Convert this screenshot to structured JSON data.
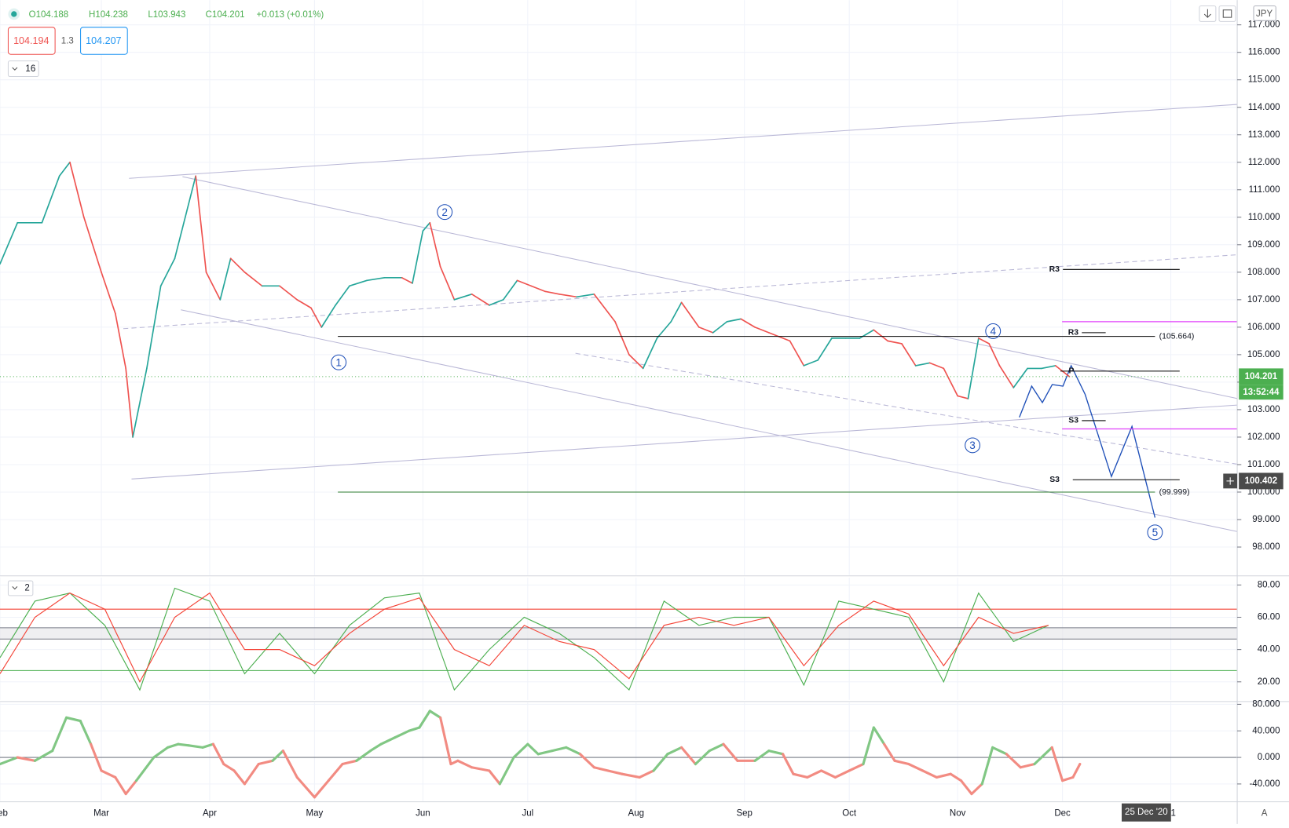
{
  "toolbar": {
    "ohlc": [
      "O104.188",
      "H104.238",
      "L103.943",
      "C104.201",
      "+0.013 (+0.01%)"
    ],
    "bid": "104.194",
    "spread": "1.3",
    "ask": "104.207",
    "indicator_length": "16",
    "oscillator_length": "2",
    "currency": "JPY",
    "auto_scale": "A"
  },
  "chart_data": [
    {
      "type": "line",
      "color_by": "direction",
      "up_color": "#26a69a",
      "down_color": "#ef5350",
      "x": [
        0,
        5,
        12,
        17,
        20,
        24,
        29,
        33,
        36,
        38,
        42,
        46,
        50,
        55,
        56,
        59,
        63,
        66,
        70,
        75,
        80,
        85,
        89,
        92,
        96,
        100,
        105,
        110,
        115,
        118,
        121,
        123,
        126,
        130,
        135,
        140,
        144,
        148,
        152,
        156,
        160,
        165,
        170,
        176,
        180,
        184,
        188,
        192,
        195,
        200,
        204,
        208,
        212,
        216,
        220,
        226,
        230,
        234,
        238,
        242,
        246,
        250,
        254,
        258,
        262,
        266,
        270,
        274,
        277,
        280,
        283,
        286,
        290,
        294,
        298,
        302,
        306
      ],
      "values": [
        108.3,
        109.8,
        109.8,
        111.5,
        112.0,
        110.0,
        108.0,
        106.5,
        104.5,
        102.0,
        104.5,
        107.5,
        108.5,
        111.0,
        111.5,
        108.0,
        107.0,
        108.5,
        108.0,
        107.5,
        107.5,
        107.0,
        106.7,
        106.0,
        106.8,
        107.5,
        107.7,
        107.8,
        107.8,
        107.6,
        109.5,
        109.8,
        108.2,
        107.0,
        107.2,
        106.8,
        107.0,
        107.7,
        107.5,
        107.3,
        107.2,
        107.1,
        107.2,
        106.2,
        105.0,
        104.5,
        105.6,
        106.2,
        106.9,
        106.0,
        105.8,
        106.2,
        106.3,
        106.0,
        105.8,
        105.5,
        104.6,
        104.8,
        105.6,
        105.6,
        105.6,
        105.9,
        105.5,
        105.4,
        104.6,
        104.7,
        104.5,
        103.5,
        103.4,
        105.6,
        105.4,
        104.6,
        103.8,
        104.5,
        104.5,
        104.6,
        104.2
      ],
      "xlim": [
        0,
        354
      ],
      "xticks": [
        {
          "value": 0,
          "label": "Feb"
        },
        {
          "value": 29,
          "label": "Mar"
        },
        {
          "value": 60,
          "label": "Apr"
        },
        {
          "value": 90,
          "label": "May"
        },
        {
          "value": 121,
          "label": "Jun"
        },
        {
          "value": 151,
          "label": "Jul"
        },
        {
          "value": 182,
          "label": "Aug"
        },
        {
          "value": 213,
          "label": "Sep"
        },
        {
          "value": 243,
          "label": "Oct"
        },
        {
          "value": 274,
          "label": "Nov"
        },
        {
          "value": 304,
          "label": "Dec"
        },
        {
          "value": 335,
          "label": "21"
        }
      ],
      "ylim": [
        96.98,
        117.9
      ],
      "yticks": [
        {
          "value": 98,
          "label": "98.000"
        },
        {
          "value": 99,
          "label": "99.000"
        },
        {
          "value": 100,
          "label": "100.000"
        },
        {
          "value": 101,
          "label": "101.000"
        },
        {
          "value": 102,
          "label": "102.000"
        },
        {
          "value": 103,
          "label": "103.000"
        },
        {
          "value": 104,
          "label": "104.000"
        },
        {
          "value": 105,
          "label": "105.000"
        },
        {
          "value": 106,
          "label": "106.000"
        },
        {
          "value": 107,
          "label": "107.000"
        },
        {
          "value": 108,
          "label": "108.000"
        },
        {
          "value": 109,
          "label": "109.000"
        },
        {
          "value": 110,
          "label": "110.000"
        },
        {
          "value": 111,
          "label": "111.000"
        },
        {
          "value": 112,
          "label": "112.000"
        },
        {
          "value": 113,
          "label": "113.000"
        },
        {
          "value": 114,
          "label": "114.000"
        },
        {
          "value": 115,
          "label": "115.000"
        },
        {
          "value": 116,
          "label": "116.000"
        },
        {
          "value": 117,
          "label": "117.000"
        }
      ],
      "grid": true,
      "levels": [
        {
          "name": "R3",
          "value": 108.1,
          "color": "#000000"
        },
        {
          "name": "R3",
          "value": 105.8,
          "color": "#000000"
        },
        {
          "label": "(105.664)",
          "value": 105.664,
          "color": "#000000"
        },
        {
          "name": "P",
          "value": 104.4,
          "color": "#000000"
        },
        {
          "name": "S3",
          "value": 102.6,
          "color": "#000000"
        },
        {
          "name": "S3",
          "value": 100.45,
          "color": "#000000"
        },
        {
          "label": "(99.999)",
          "value": 99.999,
          "color": "#2e7d32"
        }
      ],
      "lines": [
        {
          "value": 106.2,
          "color": "#e040fb"
        },
        {
          "value": 102.3,
          "color": "#e040fb"
        }
      ],
      "wave_labels": [
        "1",
        "2",
        "3",
        "4",
        "5"
      ],
      "last_price": 104.201,
      "last_price_color": "#4caf50",
      "countdown": "13:52:44",
      "cursor_price": 100.402,
      "crosshair_date": {
        "value": 328,
        "label": "25 Dec '20"
      }
    },
    {
      "type": "line",
      "x": [
        0,
        10,
        20,
        30,
        40,
        50,
        60,
        70,
        80,
        90,
        100,
        110,
        120,
        130,
        140,
        150,
        160,
        170,
        180,
        190,
        200,
        210,
        220,
        230,
        240,
        250,
        260,
        270,
        280,
        290,
        300
      ],
      "series": [
        {
          "color": "#4caf50",
          "values": [
            35,
            70,
            75,
            55,
            15,
            78,
            70,
            25,
            50,
            25,
            55,
            72,
            75,
            15,
            40,
            60,
            50,
            35,
            15,
            70,
            55,
            60,
            60,
            18,
            70,
            65,
            60,
            20,
            75,
            45,
            55
          ]
        },
        {
          "color": "#f44336",
          "values": [
            25,
            60,
            75,
            65,
            20,
            60,
            75,
            40,
            40,
            30,
            50,
            65,
            72,
            40,
            30,
            55,
            45,
            40,
            22,
            55,
            60,
            55,
            60,
            30,
            55,
            70,
            62,
            30,
            60,
            50,
            55
          ]
        }
      ],
      "ylim": [
        8.8,
        84.6
      ],
      "yticks": [
        {
          "value": 20,
          "label": "20.00"
        },
        {
          "value": 40,
          "label": "40.00"
        },
        {
          "value": 60,
          "label": "60.00"
        },
        {
          "value": 80,
          "label": "80.00"
        }
      ],
      "levels": [
        {
          "value": 65,
          "color": "#f44336"
        },
        {
          "value": 53.5,
          "color": "#787b86"
        },
        {
          "value": 46.5,
          "color": "#787b86"
        },
        {
          "value": 27,
          "color": "#4caf50"
        }
      ],
      "band": [
        46.5,
        53.5
      ],
      "grid": true
    },
    {
      "type": "line",
      "color_by": "sign",
      "up_color": "#81c784",
      "down_color": "#f28b82",
      "x": [
        0,
        5,
        10,
        15,
        19,
        23,
        26,
        29,
        33,
        36,
        39,
        44,
        48,
        51,
        54,
        58,
        61,
        64,
        67,
        70,
        74,
        78,
        81,
        85,
        90,
        94,
        98,
        102,
        106,
        109,
        113,
        117,
        120,
        123,
        126,
        129,
        131,
        135,
        140,
        143,
        147,
        151,
        154,
        158,
        162,
        166,
        170,
        174,
        178,
        183,
        187,
        191,
        195,
        199,
        203,
        207,
        211,
        216,
        220,
        224,
        227,
        231,
        235,
        239,
        243,
        247,
        250,
        253,
        256,
        260,
        264,
        268,
        272,
        275,
        278,
        281,
        284,
        288,
        292,
        296,
        301,
        304,
        307,
        309
      ],
      "values": [
        -10,
        0,
        -5,
        10,
        60,
        55,
        20,
        -20,
        -30,
        -55,
        -35,
        0,
        15,
        20,
        18,
        15,
        20,
        -10,
        -20,
        -40,
        -10,
        -5,
        10,
        -30,
        -60,
        -35,
        -10,
        -5,
        10,
        20,
        30,
        40,
        45,
        70,
        60,
        -10,
        -5,
        -15,
        -20,
        -40,
        0,
        20,
        5,
        10,
        15,
        5,
        -15,
        -20,
        -25,
        -30,
        -20,
        5,
        15,
        -10,
        10,
        20,
        -5,
        -5,
        10,
        5,
        -25,
        -30,
        -20,
        -30,
        -20,
        -10,
        45,
        20,
        -5,
        -10,
        -20,
        -30,
        -25,
        -35,
        -55,
        -40,
        15,
        5,
        -15,
        -10,
        15,
        -35,
        -30,
        -10
      ],
      "ylim": [
        -65.6,
        82.9
      ],
      "yticks": [
        {
          "value": -40,
          "label": "-40.000"
        },
        {
          "value": 0,
          "label": "0.000"
        },
        {
          "value": 40,
          "label": "40.000"
        },
        {
          "value": 80,
          "label": "80.000"
        }
      ],
      "levels": [
        {
          "value": 0,
          "color": "#787b86"
        }
      ],
      "grid": true
    }
  ]
}
